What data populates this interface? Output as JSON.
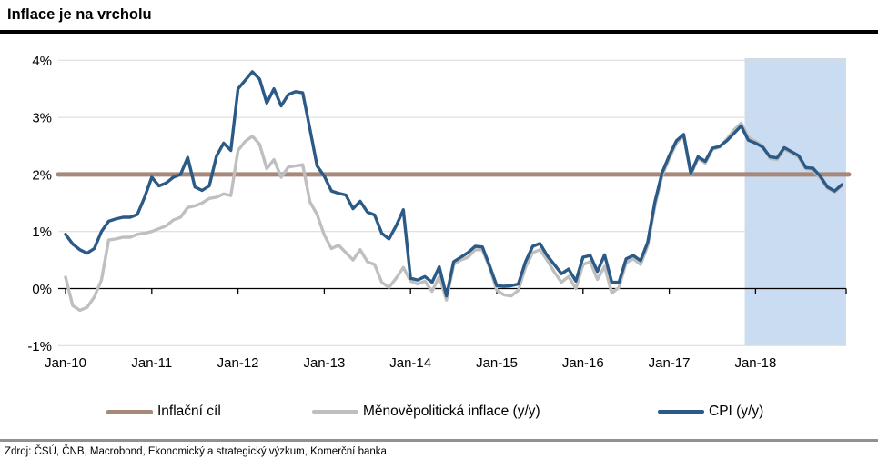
{
  "title": "Inflace je na vrcholu",
  "source": "Zdroj: ČSÚ, ČNB, Macrobond, Ekonomický a strategický výzkum, Komerční banka",
  "legend": [
    {
      "label": "Inflační cíl",
      "color": "#A6897B"
    },
    {
      "label": "Měnověpolitická inflace (y/y)",
      "color": "#BFBFBF"
    },
    {
      "label": "CPI (y/y)",
      "color": "#2B5A87"
    }
  ],
  "chart_data": {
    "type": "line",
    "title": "Inflace je na vrcholu",
    "xlabel": "",
    "ylabel": "",
    "ylim": [
      -1,
      4
    ],
    "grid": true,
    "legend_position": "bottom",
    "x_start_month": "Jan-10",
    "x_end_month": "Jan-19",
    "y_ticks": [
      {
        "value": 4,
        "label": "4%"
      },
      {
        "value": 3,
        "label": "3%"
      },
      {
        "value": 2,
        "label": "2%"
      },
      {
        "value": 1,
        "label": "1%"
      },
      {
        "value": 0,
        "label": "0%"
      },
      {
        "value": -1,
        "label": "-1%"
      }
    ],
    "x_ticks": [
      {
        "month_index": 0,
        "label": "Jan-10"
      },
      {
        "month_index": 12,
        "label": "Jan-11"
      },
      {
        "month_index": 24,
        "label": "Jan-12"
      },
      {
        "month_index": 36,
        "label": "Jan-13"
      },
      {
        "month_index": 48,
        "label": "Jan-14"
      },
      {
        "month_index": 60,
        "label": "Jan-15"
      },
      {
        "month_index": 72,
        "label": "Jan-16"
      },
      {
        "month_index": 84,
        "label": "Jan-17"
      },
      {
        "month_index": 96,
        "label": "Jan-18"
      }
    ],
    "forecast_band": {
      "start_month_index": 94.5,
      "end_month_index": 108.6,
      "color": "#C9DCF1"
    },
    "series": [
      {
        "name": "Inflační cíl",
        "type": "target-line",
        "value": 2,
        "color": "#A6897B"
      },
      {
        "name": "Měnověpolitická inflace (y/y)",
        "type": "line",
        "color": "#BFBFBF",
        "values": [
          0.2,
          -0.3,
          -0.38,
          -0.33,
          -0.15,
          0.15,
          0.85,
          0.87,
          0.9,
          0.9,
          0.95,
          0.97,
          1.0,
          1.05,
          1.1,
          1.2,
          1.25,
          1.42,
          1.45,
          1.5,
          1.58,
          1.6,
          1.66,
          1.63,
          2.42,
          2.58,
          2.67,
          2.53,
          2.1,
          2.26,
          1.95,
          2.13,
          2.15,
          2.17,
          1.52,
          1.3,
          0.94,
          0.7,
          0.76,
          0.63,
          0.5,
          0.68,
          0.47,
          0.42,
          0.11,
          0.02,
          0.18,
          0.37,
          0.13,
          0.08,
          0.13,
          -0.05,
          0.21,
          -0.2,
          0.42,
          0.5,
          0.55,
          0.68,
          0.68,
          0.37,
          -0.03,
          -0.11,
          -0.13,
          -0.03,
          0.37,
          0.63,
          0.68,
          0.5,
          0.29,
          0.11,
          0.21,
          0.0,
          0.42,
          0.47,
          0.16,
          0.39,
          -0.08,
          0.02,
          0.45,
          0.52,
          0.42,
          0.75,
          1.45,
          1.98,
          2.28,
          2.55,
          2.68,
          2.0,
          2.28,
          2.2,
          2.44,
          2.48,
          2.62,
          2.78,
          2.9,
          2.65,
          2.58,
          2.5,
          2.28,
          2.26,
          2.44,
          2.38,
          2.3,
          2.1,
          2.08,
          1.94,
          1.76,
          1.69,
          1.8
        ]
      },
      {
        "name": "CPI (y/y)",
        "type": "line",
        "color": "#2B5A87",
        "values": [
          0.95,
          0.78,
          0.68,
          0.62,
          0.7,
          1.0,
          1.18,
          1.22,
          1.25,
          1.25,
          1.3,
          1.6,
          1.95,
          1.8,
          1.85,
          1.95,
          2.0,
          2.3,
          1.78,
          1.72,
          1.8,
          2.32,
          2.55,
          2.42,
          3.5,
          3.65,
          3.8,
          3.67,
          3.25,
          3.5,
          3.2,
          3.4,
          3.45,
          3.43,
          2.8,
          2.15,
          1.97,
          1.71,
          1.67,
          1.64,
          1.4,
          1.53,
          1.34,
          1.29,
          0.97,
          0.87,
          1.1,
          1.38,
          0.18,
          0.15,
          0.21,
          0.11,
          0.38,
          -0.13,
          0.47,
          0.55,
          0.63,
          0.74,
          0.73,
          0.4,
          0.05,
          0.04,
          0.05,
          0.08,
          0.47,
          0.74,
          0.79,
          0.58,
          0.42,
          0.26,
          0.34,
          0.13,
          0.55,
          0.58,
          0.3,
          0.59,
          0.11,
          0.11,
          0.52,
          0.58,
          0.49,
          0.81,
          1.52,
          2.03,
          2.33,
          2.59,
          2.7,
          2.02,
          2.31,
          2.23,
          2.46,
          2.49,
          2.59,
          2.72,
          2.85,
          2.6,
          2.55,
          2.48,
          2.31,
          2.29,
          2.47,
          2.4,
          2.33,
          2.12,
          2.11,
          1.97,
          1.78,
          1.71,
          1.82
        ]
      }
    ]
  },
  "colors": {
    "gridline": "#D9D9D9",
    "axis": "#000000",
    "title_rule": "#000000",
    "source_rule": "#919191"
  }
}
